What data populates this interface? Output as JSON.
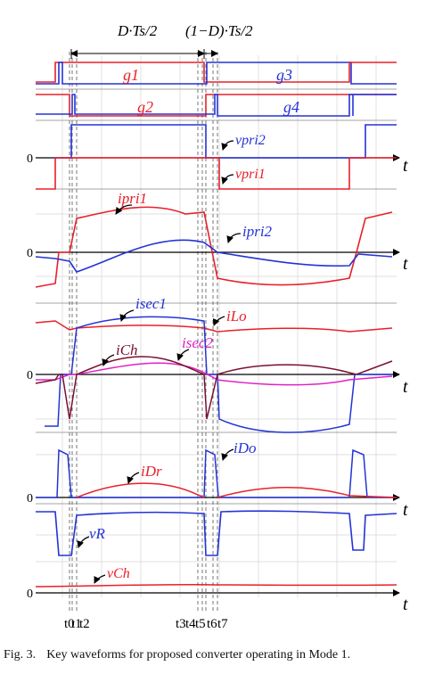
{
  "colors": {
    "red": "#e8202a",
    "blue": "#2433d6",
    "magenta": "#e020c8",
    "maroon": "#7a1030",
    "grid": "#d4d4d4",
    "axis": "#000000",
    "dash": "#555555"
  },
  "top_annotations": {
    "left_label": "D·Ts/2",
    "right_label": "(1−D)·Ts/2"
  },
  "gate_labels": {
    "g1": "g1",
    "g2": "g2",
    "g3": "g3",
    "g4": "g4"
  },
  "signal_labels": {
    "v_pri2": "vpri2",
    "v_pri1": "vpri1",
    "i_pri1": "ipri1",
    "i_pri2": "ipri2",
    "i_sec1": "isec1",
    "i_Lo": "iLo",
    "i_sec2": "isec2",
    "i_Ch": "iCh",
    "i_Dr": "iDr",
    "i_Do": "iDo",
    "v_R": "vR",
    "v_Ch": "vCh"
  },
  "axis_labels": {
    "zero": "0",
    "time": "t"
  },
  "time_instants": [
    "t0",
    "t1",
    "t2",
    "t3",
    "t4",
    "t5",
    "t6",
    "t7"
  ],
  "caption": {
    "number": "Fig. 3.",
    "text": "Key waveforms for proposed converter operating in Mode 1."
  }
}
